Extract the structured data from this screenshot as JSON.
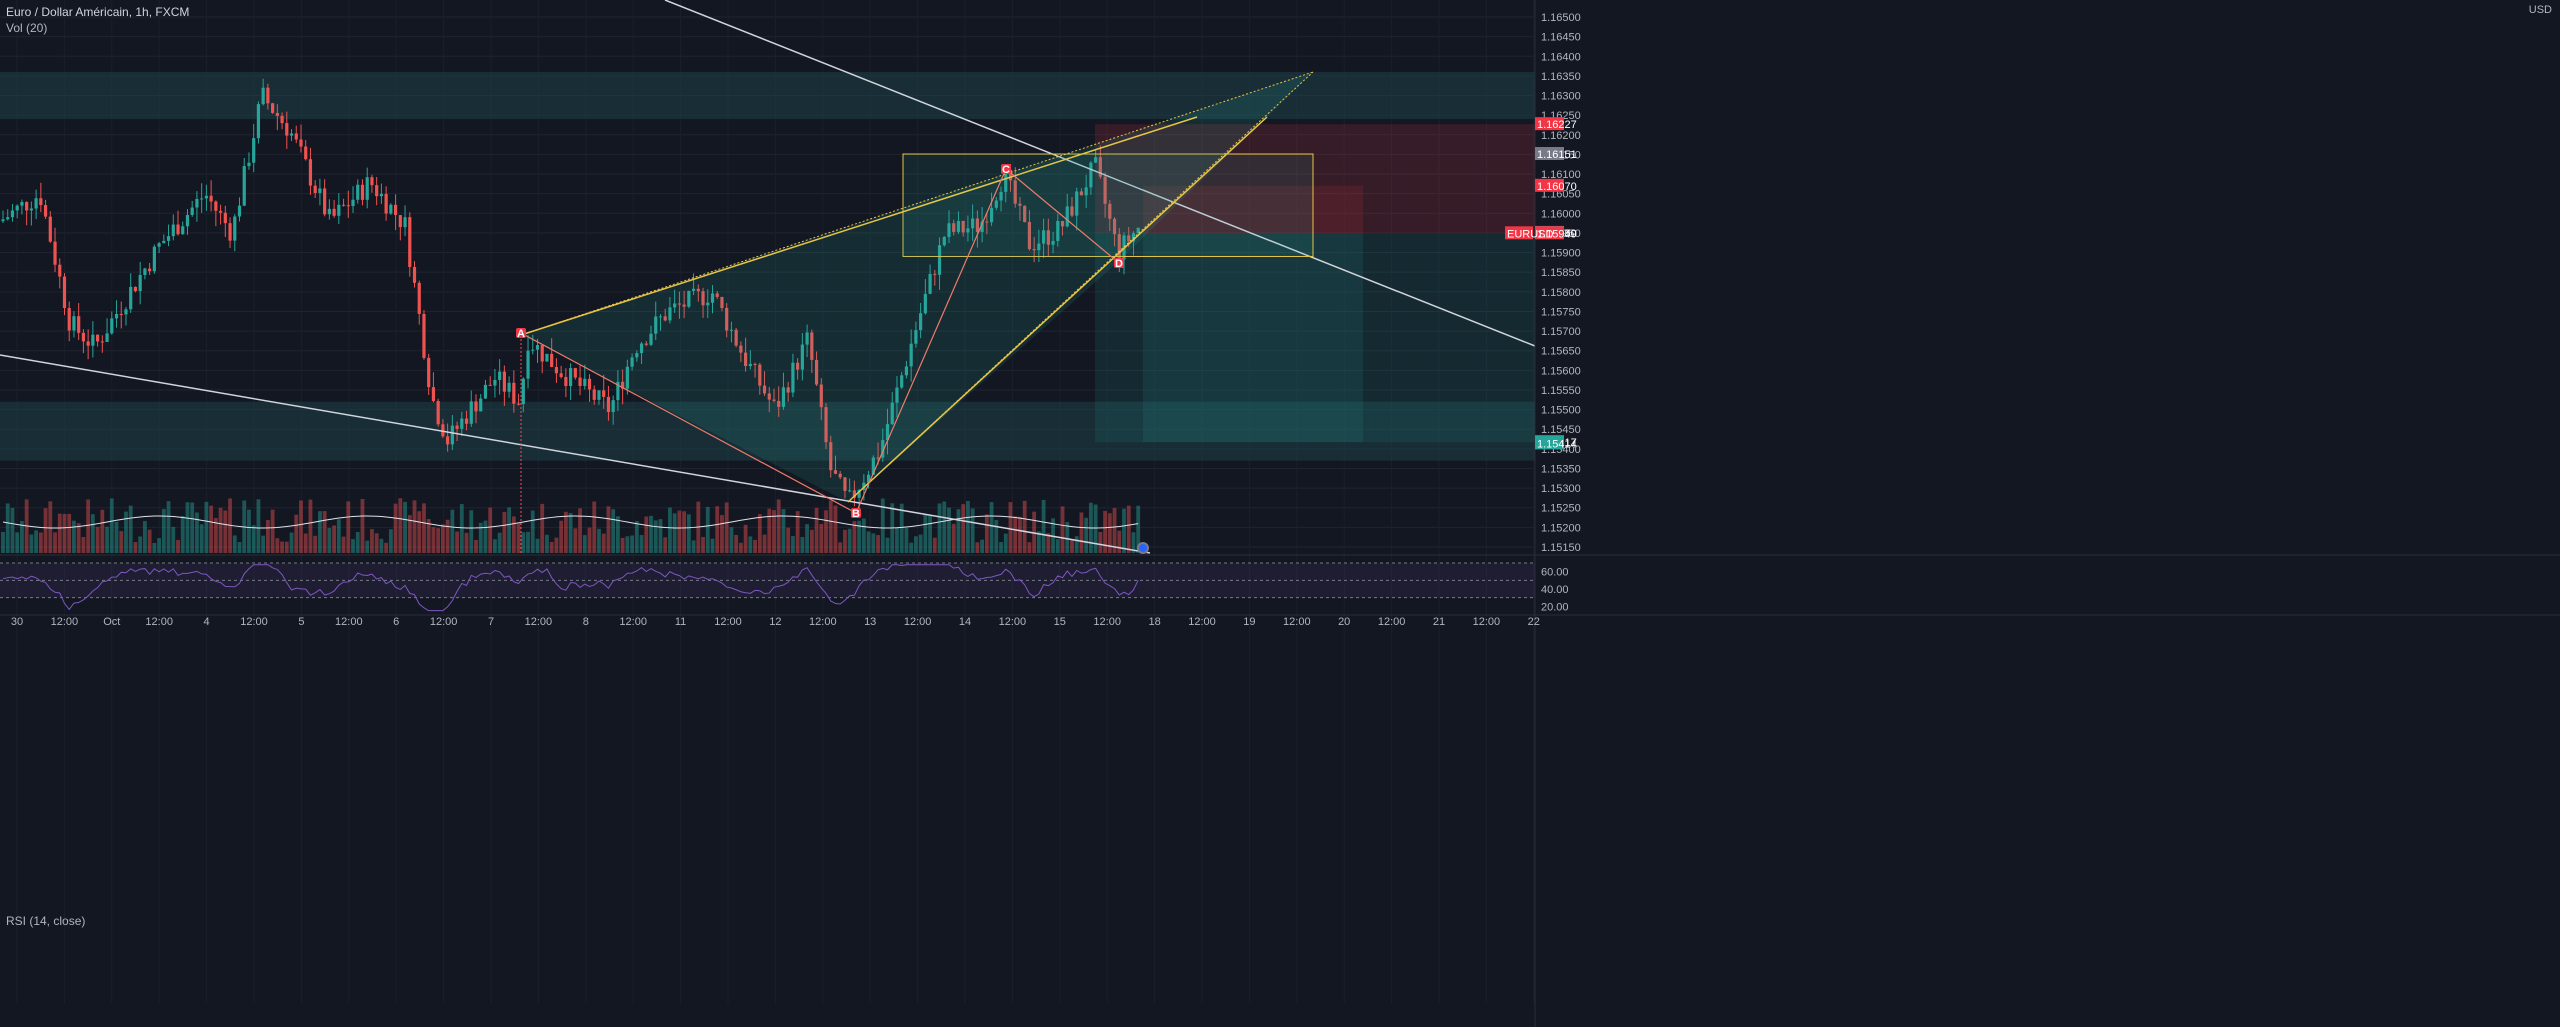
{
  "header": {
    "title": "Euro / Dollar Américain, 1h, FXCM",
    "volume_label": "Vol (20)",
    "rsi_label": "RSI (14, close)",
    "currency": "USD"
  },
  "colors": {
    "background": "#131722",
    "bull": "#26a69a",
    "bear": "#ef5350",
    "zone": "#1e4a4f",
    "trendline": "#d1d4dc",
    "pattern": "#e8c547",
    "rsi": "#7e57c2"
  },
  "chart_data": [
    {
      "type": "candlestick",
      "title": "Euro / Dollar Américain, 1h, FXCM",
      "price_axis": {
        "ticks": [
          1.165,
          1.1645,
          1.164,
          1.1635,
          1.163,
          1.1625,
          1.162,
          1.1615,
          1.161,
          1.1605,
          1.16,
          1.1595,
          1.159,
          1.1585,
          1.158,
          1.1575,
          1.157,
          1.1565,
          1.156,
          1.1555,
          1.155,
          1.1545,
          1.154,
          1.1535,
          1.153,
          1.1525,
          1.152,
          1.1515
        ],
        "ylim": [
          1.1512,
          1.1655
        ]
      },
      "time_axis": {
        "ticks": [
          "30",
          "12:00",
          "Oct",
          "12:00",
          "4",
          "12:00",
          "5",
          "12:00",
          "6",
          "12:00",
          "7",
          "12:00",
          "8",
          "12:00",
          "11",
          "12:00",
          "12",
          "12:00",
          "13",
          "12:00",
          "14",
          "12:00",
          "15",
          "12:00",
          "18",
          "12:00",
          "19",
          "12:00",
          "20",
          "12:00",
          "21",
          "12:00",
          "22"
        ]
      },
      "price_badges": [
        {
          "label": "1.16227",
          "price": 1.16227,
          "color": "#f23645"
        },
        {
          "label": "1.16151",
          "price": 1.16151,
          "color": "#787b86"
        },
        {
          "label": "1.16070",
          "price": 1.1607,
          "color": "#f23645"
        },
        {
          "label": "1.15950",
          "price": 1.1595,
          "color": "#787b86"
        },
        {
          "label": "1.15949",
          "price": 1.15949,
          "color": "#f23645"
        },
        {
          "label": "EURUSD",
          "price": 1.15949,
          "color": "#f23645"
        },
        {
          "label": "1.15417",
          "price": 1.15417,
          "color": "#26a69a"
        },
        {
          "label": "1.15414",
          "price": 1.15414,
          "color": "#26a69a"
        }
      ],
      "pattern_points": [
        {
          "label": "A",
          "price": 1.15695
        },
        {
          "label": "B",
          "price": 1.15255
        },
        {
          "label": "C",
          "price": 1.16105
        },
        {
          "label": "D",
          "price": 1.15875
        }
      ],
      "zones": [
        {
          "from": 1.1624,
          "to": 1.1636
        },
        {
          "from": 1.1537,
          "to": 1.1552
        }
      ],
      "position": {
        "stop": 1.16227,
        "entry": 1.15949,
        "target": 1.15417
      }
    },
    {
      "type": "bar",
      "title": "Vol (20)"
    },
    {
      "type": "line",
      "title": "RSI (14, close)",
      "ticks": [
        60,
        40,
        20
      ],
      "ylim": [
        10,
        70
      ]
    }
  ]
}
